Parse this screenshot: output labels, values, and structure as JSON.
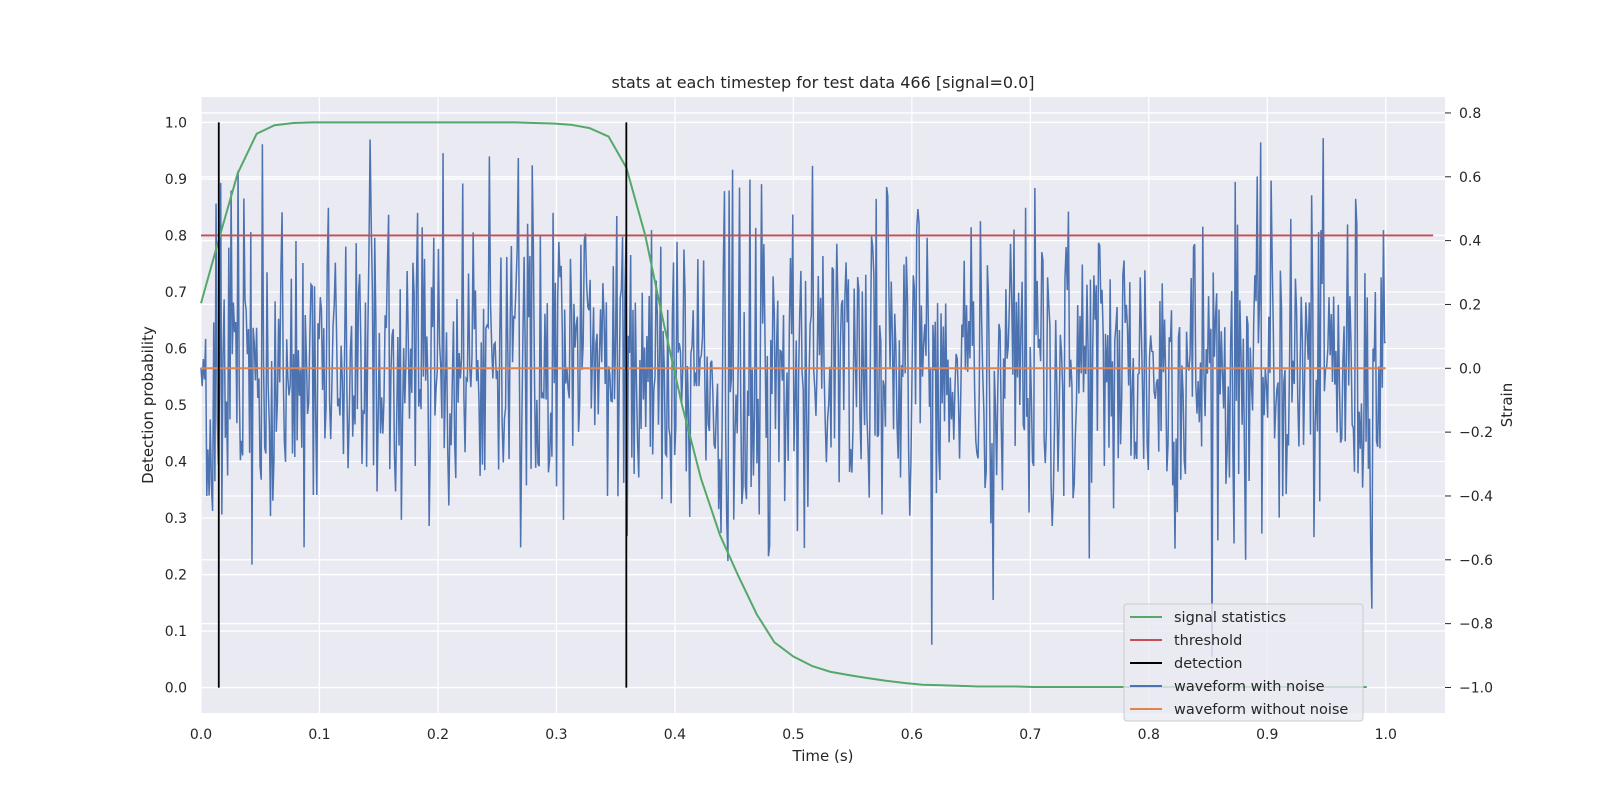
{
  "chart_data": {
    "type": "line",
    "title": "stats at each timestep for test data 466 [signal=0.0]",
    "xlabel": "Time (s)",
    "ylabel_left": "Detection probability",
    "ylabel_right": "Strain",
    "xlim": [
      0.0,
      1.05
    ],
    "ylim_left": [
      -0.045,
      1.045
    ],
    "ylim_right": [
      -1.08,
      0.85
    ],
    "x_ticks": [
      "0.0",
      "0.1",
      "0.2",
      "0.3",
      "0.4",
      "0.5",
      "0.6",
      "0.7",
      "0.8",
      "0.9",
      "1.0"
    ],
    "y_left_ticks": [
      "0.0",
      "0.1",
      "0.2",
      "0.3",
      "0.4",
      "0.5",
      "0.6",
      "0.7",
      "0.8",
      "0.9",
      "1.0"
    ],
    "y_right_ticks": [
      "−1.0",
      "−0.8",
      "−0.6",
      "−0.4",
      "−0.2",
      "0.0",
      "0.2",
      "0.4",
      "0.6",
      "0.8"
    ],
    "grid": true,
    "legend_position": "lower right",
    "colors": {
      "signal_statistics": "#55a868",
      "threshold": "#c44e52",
      "detection": "#000000",
      "waveform_with_noise": "#4c72b0",
      "waveform_without_noise": "#dd8452",
      "plot_background": "#eaeaf2",
      "grid": "#ffffff"
    },
    "series": [
      {
        "name": "signal statistics",
        "axis": "left",
        "x": [
          0.0,
          0.016,
          0.031,
          0.047,
          0.062,
          0.078,
          0.094,
          0.109,
          0.125,
          0.141,
          0.156,
          0.172,
          0.188,
          0.203,
          0.219,
          0.234,
          0.25,
          0.266,
          0.281,
          0.297,
          0.312,
          0.328,
          0.344,
          0.359,
          0.375,
          0.391,
          0.406,
          0.422,
          0.438,
          0.453,
          0.469,
          0.484,
          0.5,
          0.516,
          0.531,
          0.547,
          0.562,
          0.578,
          0.594,
          0.609,
          0.625,
          0.641,
          0.656,
          0.672,
          0.688,
          0.703,
          0.719,
          0.734,
          0.75,
          0.766,
          0.781,
          0.797,
          0.812,
          0.828,
          0.844,
          0.859,
          0.875,
          0.891,
          0.906,
          0.922,
          0.938,
          0.953,
          0.969,
          0.984
        ],
        "y": [
          0.68,
          0.8,
          0.91,
          0.98,
          0.995,
          0.999,
          1.0,
          1.0,
          1.0,
          1.0,
          1.0,
          1.0,
          1.0,
          1.0,
          1.0,
          1.0,
          1.0,
          1.0,
          0.999,
          0.998,
          0.996,
          0.99,
          0.975,
          0.92,
          0.8,
          0.64,
          0.5,
          0.37,
          0.27,
          0.2,
          0.13,
          0.08,
          0.055,
          0.038,
          0.028,
          0.022,
          0.017,
          0.012,
          0.008,
          0.005,
          0.004,
          0.003,
          0.002,
          0.002,
          0.002,
          0.001,
          0.001,
          0.001,
          0.001,
          0.001,
          0.001,
          0.001,
          0.001,
          0.001,
          0.001,
          0.001,
          0.001,
          0.001,
          0.001,
          0.001,
          0.001,
          0.001,
          0.001,
          0.001
        ]
      },
      {
        "name": "threshold",
        "axis": "left",
        "x": [
          0.0,
          1.04
        ],
        "y": [
          0.8,
          0.8
        ]
      },
      {
        "name": "detection",
        "axis": "left",
        "x": [
          0.015,
          0.359
        ],
        "y_range": [
          0.0,
          1.0
        ]
      },
      {
        "name": "waveform with noise",
        "axis": "right",
        "x_range": [
          0.0,
          1.0
        ],
        "points": 1024,
        "y_min": -1.0,
        "y_max": 0.77,
        "y": []
      },
      {
        "name": "waveform without noise",
        "axis": "right",
        "x": [
          0.0,
          1.0
        ],
        "y": [
          0.0,
          0.0
        ]
      }
    ]
  }
}
